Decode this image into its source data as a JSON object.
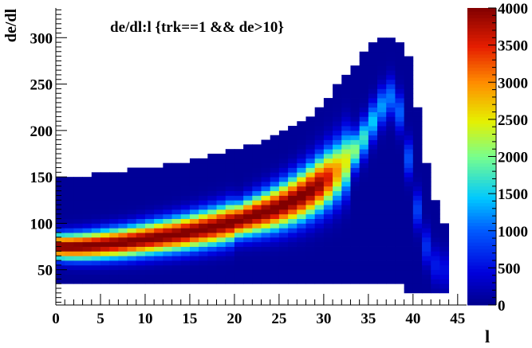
{
  "chart_data": {
    "type": "heatmap",
    "title": "de/dl:l {trk==1 && de>10}",
    "xlabel": "l",
    "ylabel": "de/dl",
    "xlim": [
      0,
      46
    ],
    "ylim": [
      12,
      332
    ],
    "x_ticks": [
      "0",
      "5",
      "10",
      "15",
      "20",
      "25",
      "30",
      "35",
      "40",
      "45"
    ],
    "y_ticks": [
      "50",
      "100",
      "150",
      "200",
      "250",
      "300"
    ],
    "x_bin_width": 1,
    "y_bin_width": 5,
    "colorbar": {
      "range": [
        0,
        4000
      ],
      "ticks": [
        "0",
        "500",
        "1000",
        "1500",
        "2000",
        "2500",
        "3000",
        "3500",
        "4000"
      ]
    },
    "band": {
      "x": [
        0,
        2,
        4,
        6,
        8,
        10,
        12,
        14,
        16,
        18,
        20,
        22,
        24,
        26,
        28,
        30,
        32,
        34,
        35,
        36,
        37,
        38,
        39,
        40,
        41,
        42,
        43
      ],
      "center_de_dl": [
        75,
        75,
        76,
        78,
        80,
        83,
        86,
        89,
        93,
        97,
        102,
        108,
        114,
        122,
        132,
        145,
        160,
        185,
        200,
        220,
        232,
        240,
        200,
        140,
        90,
        60,
        50
      ],
      "peak_counts": [
        4000,
        4000,
        4000,
        4000,
        4000,
        4000,
        4000,
        4000,
        4000,
        4000,
        4000,
        4000,
        4000,
        4000,
        4000,
        3800,
        2600,
        1800,
        1500,
        1300,
        1100,
        1000,
        900,
        800,
        700,
        600,
        450
      ]
    },
    "legend": "none",
    "grid": false
  }
}
